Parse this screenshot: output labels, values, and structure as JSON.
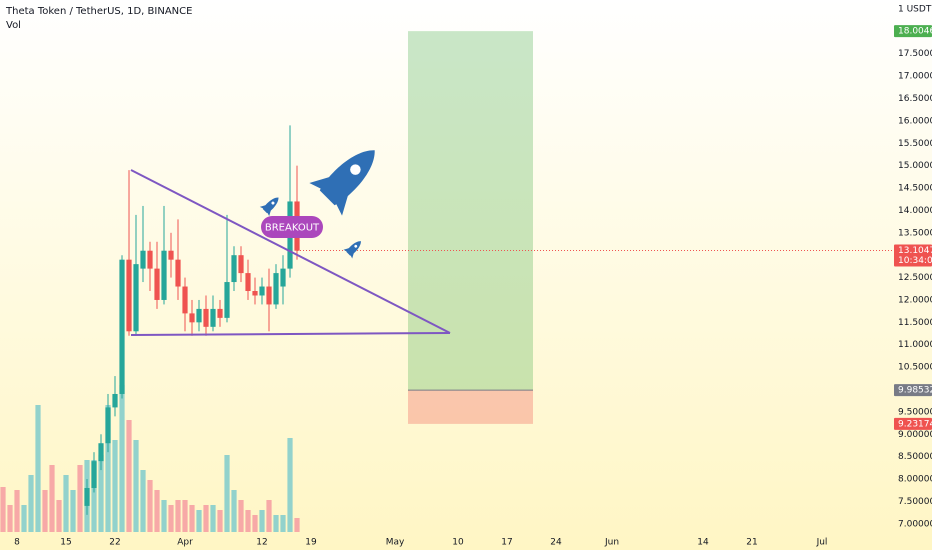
{
  "chart_data": {
    "type": "candlestick",
    "title": "Theta Token / TetherUS, 1D, BINANCE",
    "volume_label": "Vol",
    "currency_label": "1 USDT",
    "annotation": "BREAKOUT",
    "up_color": "#26a69a",
    "down_color": "#ef5350",
    "ylim": [
      6.75,
      18.7
    ],
    "yticks": [
      {
        "value": 7,
        "label": "7.00000"
      },
      {
        "value": 7.5,
        "label": "7.50000"
      },
      {
        "value": 8,
        "label": "8.00000"
      },
      {
        "value": 8.5,
        "label": "8.50000"
      },
      {
        "value": 9,
        "label": "9.00000"
      },
      {
        "value": 9.5,
        "label": "9.50000"
      },
      {
        "value": 10,
        "label": "10.00000"
      },
      {
        "value": 10.5,
        "label": "10.50000"
      },
      {
        "value": 11,
        "label": "11.00000"
      },
      {
        "value": 11.5,
        "label": "11.50000"
      },
      {
        "value": 12,
        "label": "12.00000"
      },
      {
        "value": 12.5,
        "label": "12.50000"
      },
      {
        "value": 13,
        "label": "13.00000"
      },
      {
        "value": 13.5,
        "label": "13.50000"
      },
      {
        "value": 14,
        "label": "14.00000"
      },
      {
        "value": 14.5,
        "label": "14.50000"
      },
      {
        "value": 15,
        "label": "15.00000"
      },
      {
        "value": 15.5,
        "label": "15.50000"
      },
      {
        "value": 16,
        "label": "16.00000"
      },
      {
        "value": 16.5,
        "label": "16.50000"
      },
      {
        "value": 17,
        "label": "17.00000"
      },
      {
        "value": 17.5,
        "label": "17.50000"
      }
    ],
    "xlim": [
      -0.43,
      127.14
    ],
    "xticks": [
      {
        "value": 2,
        "label": "8"
      },
      {
        "value": 9,
        "label": "15"
      },
      {
        "value": 16,
        "label": "22"
      },
      {
        "value": 26,
        "label": "Apr"
      },
      {
        "value": 37,
        "label": "12"
      },
      {
        "value": 44,
        "label": "19"
      },
      {
        "value": 56,
        "label": "May"
      },
      {
        "value": 65,
        "label": "10"
      },
      {
        "value": 72,
        "label": "17"
      },
      {
        "value": 79,
        "label": "24"
      },
      {
        "value": 87,
        "label": "Jun"
      },
      {
        "value": 100,
        "label": "14"
      },
      {
        "value": 107,
        "label": "21"
      },
      {
        "value": 117,
        "label": "Jul"
      }
    ],
    "open": [
      null,
      null,
      null,
      null,
      null,
      null,
      null,
      null,
      null,
      null,
      null,
      null,
      7.4,
      7.8,
      8.4,
      8.8,
      9.6,
      9.9,
      12.9,
      11.3,
      12.7,
      13.1,
      12.7,
      12.0,
      13.1,
      12.9,
      12.3,
      11.7,
      11.5,
      11.8,
      11.4,
      11.8,
      11.6,
      12.4,
      13.0,
      12.6,
      12.2,
      12.1,
      12.3,
      11.9,
      12.3,
      12.7,
      14.2
    ],
    "high": [
      null,
      null,
      null,
      null,
      null,
      null,
      null,
      null,
      null,
      null,
      null,
      null,
      8.0,
      8.6,
      9.0,
      9.9,
      10.3,
      13.0,
      14.9,
      13.9,
      14.1,
      13.3,
      13.3,
      14.1,
      13.5,
      13.8,
      12.5,
      12.0,
      12.0,
      12.1,
      12.1,
      12.0,
      13.9,
      13.2,
      13.2,
      12.9,
      12.5,
      12.5,
      12.7,
      12.8,
      13.0,
      15.9,
      15.0
    ],
    "low": [
      null,
      null,
      null,
      null,
      null,
      null,
      null,
      null,
      null,
      null,
      null,
      null,
      7.2,
      7.7,
      8.2,
      8.6,
      9.4,
      9.8,
      11.2,
      11.2,
      12.4,
      12.2,
      11.8,
      11.9,
      12.5,
      12.0,
      11.3,
      11.2,
      11.3,
      11.2,
      11.3,
      11.4,
      11.5,
      12.2,
      12.4,
      12.0,
      11.9,
      11.9,
      11.3,
      11.8,
      11.9,
      12.5,
      12.9
    ],
    "close": [
      null,
      null,
      null,
      null,
      null,
      null,
      null,
      null,
      null,
      null,
      null,
      null,
      7.8,
      8.4,
      8.8,
      9.6,
      9.9,
      12.9,
      11.3,
      12.8,
      13.1,
      12.7,
      12.0,
      13.1,
      12.9,
      12.3,
      11.7,
      11.5,
      11.8,
      11.4,
      11.8,
      11.6,
      12.4,
      13.0,
      12.6,
      12.2,
      12.1,
      12.3,
      11.9,
      12.6,
      12.7,
      14.2,
      13.1
    ],
    "volume": {
      "ylim": [
        0,
        150
      ],
      "values": [
        45,
        27,
        42,
        27,
        57,
        127,
        42,
        67,
        32,
        57,
        42,
        67,
        72,
        72,
        77,
        127,
        92,
        147,
        112,
        92,
        62,
        52,
        42,
        32,
        27,
        32,
        32,
        27,
        22,
        27,
        27,
        22,
        77,
        42,
        32,
        22,
        17,
        22,
        32,
        17,
        17,
        94,
        14
      ],
      "colors": [
        "#f7a9a7",
        "#f7a9a7",
        "#f7a9a7",
        "#92d2cc",
        "#92d2cc",
        "#92d2cc",
        "#f7a9a7",
        "#f7a9a7",
        "#f7a9a7",
        "#92d2cc",
        "#92d2cc",
        "#f7a9a7",
        "#92d2cc",
        "#92d2cc",
        "#92d2cc",
        "#92d2cc",
        "#92d2cc",
        "#92d2cc",
        "#f7a9a7",
        "#92d2cc",
        "#92d2cc",
        "#f7a9a7",
        "#f7a9a7",
        "#92d2cc",
        "#f7a9a7",
        "#f7a9a7",
        "#f7a9a7",
        "#f7a9a7",
        "#92d2cc",
        "#f7a9a7",
        "#92d2cc",
        "#f7a9a7",
        "#92d2cc",
        "#92d2cc",
        "#f7a9a7",
        "#f7a9a7",
        "#f7a9a7",
        "#92d2cc",
        "#f7a9a7",
        "#92d2cc",
        "#92d2cc",
        "#92d2cc",
        "#f7a9a7"
      ]
    },
    "last_price": 13.10472,
    "countdown": "10:34:04",
    "position": {
      "target": 18.00464,
      "entry": 9.98532,
      "stop": 9.23174,
      "target_color": "#4caf50",
      "entry_color": "#787b86",
      "stop_color": "#ef5350"
    }
  }
}
